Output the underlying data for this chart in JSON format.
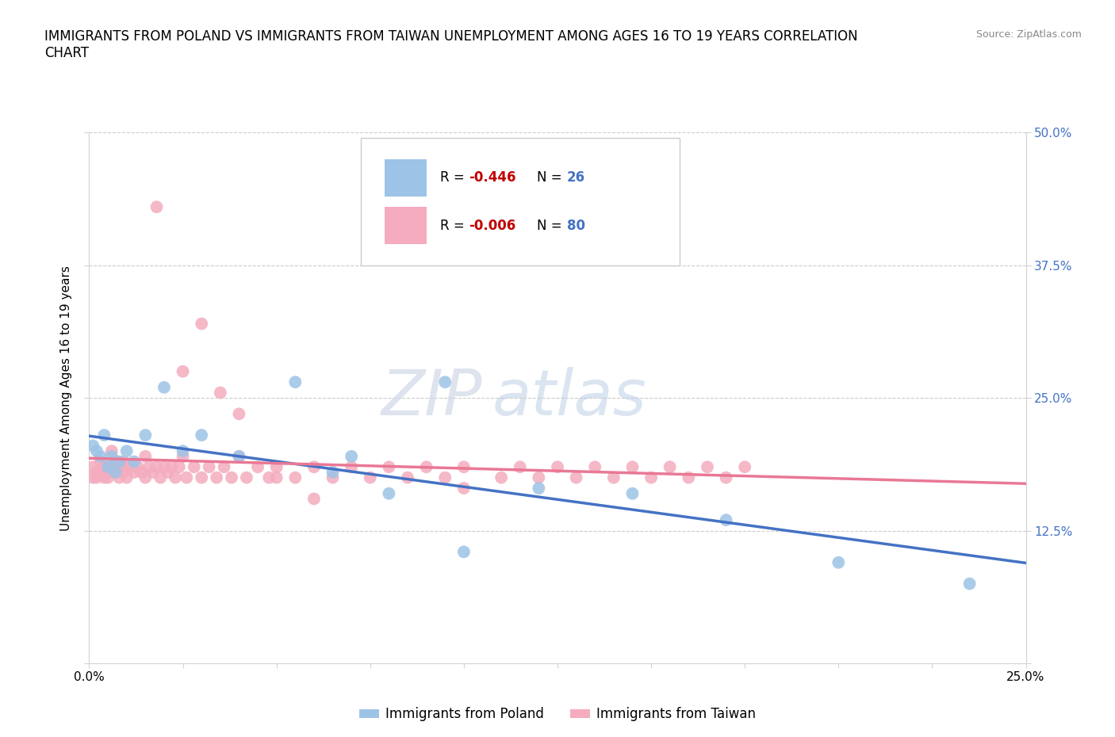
{
  "title": "IMMIGRANTS FROM POLAND VS IMMIGRANTS FROM TAIWAN UNEMPLOYMENT AMONG AGES 16 TO 19 YEARS CORRELATION\nCHART",
  "source": "Source: ZipAtlas.com",
  "ylabel": "Unemployment Among Ages 16 to 19 years",
  "xlim": [
    0.0,
    0.25
  ],
  "ylim": [
    0.0,
    0.5
  ],
  "xticks": [
    0.0,
    0.025,
    0.05,
    0.075,
    0.1,
    0.125,
    0.15,
    0.175,
    0.2,
    0.225,
    0.25
  ],
  "xticklabels_shown": [
    "0.0%",
    "",
    "",
    "",
    "",
    "",
    "",
    "",
    "",
    "",
    "25.0%"
  ],
  "yticks": [
    0.0,
    0.125,
    0.25,
    0.375,
    0.5
  ],
  "yticklabels": [
    "",
    "12.5%",
    "25.0%",
    "37.5%",
    "50.0%"
  ],
  "poland_color": "#9dc3e6",
  "taiwan_color": "#f4acbe",
  "poland_line_color": "#4472c4",
  "taiwan_line_color": "#e97895",
  "poland_R": -0.446,
  "poland_N": 26,
  "taiwan_R": -0.006,
  "taiwan_N": 80,
  "watermark_text": "ZIPatlas",
  "legend_r_color": "#c00000",
  "legend_n_color": "#4472c4",
  "grid_color": "#cccccc",
  "poland_scatter_x": [
    0.001,
    0.002,
    0.003,
    0.004,
    0.005,
    0.006,
    0.007,
    0.008,
    0.01,
    0.012,
    0.015,
    0.02,
    0.025,
    0.03,
    0.04,
    0.055,
    0.065,
    0.07,
    0.08,
    0.095,
    0.1,
    0.12,
    0.145,
    0.17,
    0.2,
    0.235
  ],
  "poland_scatter_y": [
    0.205,
    0.2,
    0.195,
    0.215,
    0.185,
    0.195,
    0.18,
    0.19,
    0.2,
    0.19,
    0.215,
    0.26,
    0.2,
    0.215,
    0.195,
    0.265,
    0.18,
    0.195,
    0.16,
    0.265,
    0.105,
    0.165,
    0.16,
    0.135,
    0.095,
    0.075
  ],
  "taiwan_scatter_x": [
    0.001,
    0.001,
    0.002,
    0.002,
    0.003,
    0.003,
    0.004,
    0.004,
    0.005,
    0.005,
    0.006,
    0.006,
    0.007,
    0.007,
    0.008,
    0.008,
    0.009,
    0.009,
    0.01,
    0.01,
    0.011,
    0.012,
    0.013,
    0.014,
    0.015,
    0.015,
    0.016,
    0.017,
    0.018,
    0.019,
    0.02,
    0.021,
    0.022,
    0.023,
    0.024,
    0.025,
    0.026,
    0.028,
    0.03,
    0.032,
    0.034,
    0.036,
    0.038,
    0.04,
    0.042,
    0.045,
    0.048,
    0.05,
    0.055,
    0.06,
    0.065,
    0.07,
    0.075,
    0.08,
    0.085,
    0.09,
    0.095,
    0.1,
    0.11,
    0.115,
    0.12,
    0.125,
    0.13,
    0.135,
    0.14,
    0.145,
    0.15,
    0.155,
    0.16,
    0.165,
    0.17,
    0.175,
    0.018,
    0.025,
    0.03,
    0.035,
    0.04,
    0.05,
    0.06,
    0.1
  ],
  "taiwan_scatter_y": [
    0.185,
    0.175,
    0.18,
    0.175,
    0.19,
    0.18,
    0.185,
    0.175,
    0.185,
    0.175,
    0.2,
    0.185,
    0.19,
    0.18,
    0.185,
    0.175,
    0.19,
    0.18,
    0.185,
    0.175,
    0.185,
    0.18,
    0.185,
    0.18,
    0.195,
    0.175,
    0.185,
    0.18,
    0.185,
    0.175,
    0.185,
    0.18,
    0.185,
    0.175,
    0.185,
    0.195,
    0.175,
    0.185,
    0.175,
    0.185,
    0.175,
    0.185,
    0.175,
    0.195,
    0.175,
    0.185,
    0.175,
    0.185,
    0.175,
    0.185,
    0.175,
    0.185,
    0.175,
    0.185,
    0.175,
    0.185,
    0.175,
    0.185,
    0.175,
    0.185,
    0.175,
    0.185,
    0.175,
    0.185,
    0.175,
    0.185,
    0.175,
    0.185,
    0.175,
    0.185,
    0.175,
    0.185,
    0.43,
    0.275,
    0.32,
    0.255,
    0.235,
    0.175,
    0.155,
    0.165
  ],
  "bottom_legend_labels": [
    "Immigrants from Poland",
    "Immigrants from Taiwan"
  ]
}
